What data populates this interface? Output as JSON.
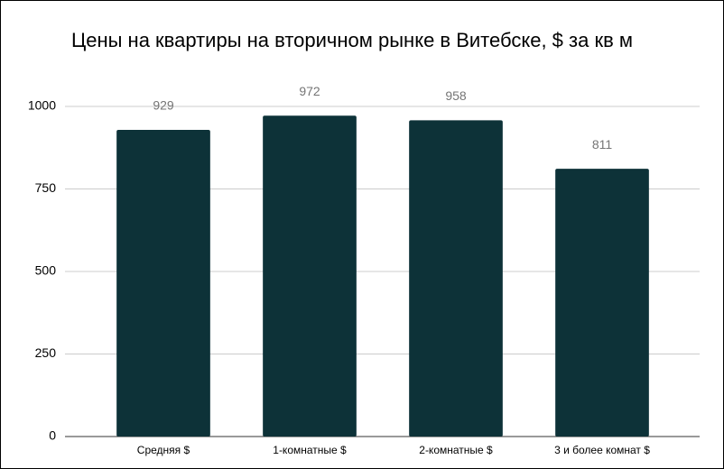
{
  "chart_data": {
    "type": "bar",
    "title": "Цены на квартиры на вторичном рынке в Витебске, $ за кв м",
    "categories": [
      "Средняя $",
      "1-комнатные $",
      "2-комнатные $",
      "3 и более комнат $"
    ],
    "values": [
      929,
      972,
      958,
      811
    ],
    "color": "#0d3238",
    "ylim": [
      0,
      1000
    ],
    "yticks": [
      0,
      250,
      500,
      750,
      1000
    ],
    "grid": true,
    "data_labels": true
  }
}
